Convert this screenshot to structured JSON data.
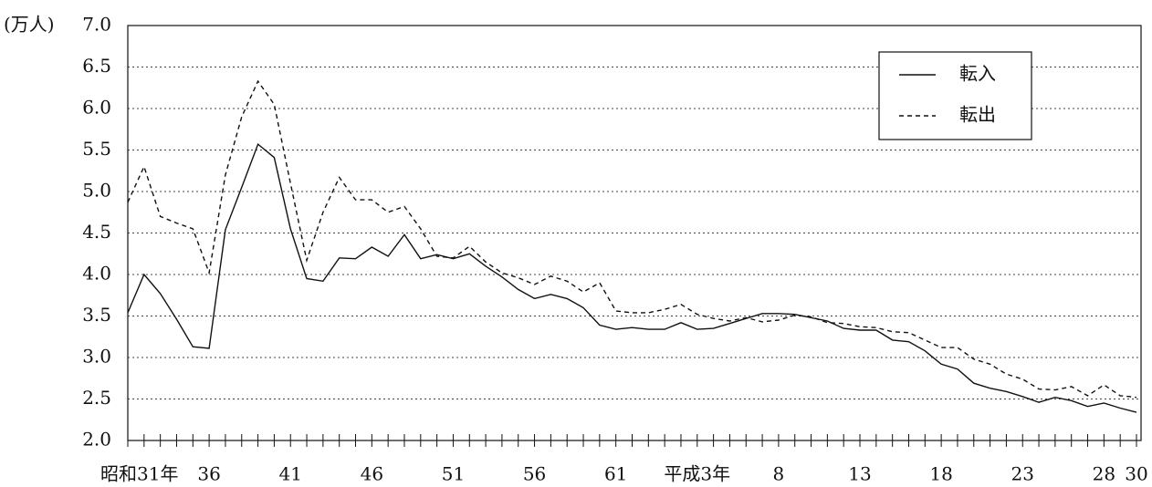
{
  "chart_data": {
    "type": "line",
    "y_unit": "(万人)",
    "categories": [
      "昭和31年",
      null,
      null,
      null,
      null,
      "36",
      null,
      null,
      null,
      null,
      "41",
      null,
      null,
      null,
      null,
      "46",
      null,
      null,
      null,
      null,
      "51",
      null,
      null,
      null,
      null,
      "56",
      null,
      null,
      null,
      null,
      "61",
      null,
      null,
      null,
      null,
      "平成3年",
      null,
      null,
      null,
      null,
      "8",
      null,
      null,
      null,
      null,
      "13",
      null,
      null,
      null,
      null,
      "18",
      null,
      null,
      null,
      null,
      "23",
      null,
      null,
      null,
      null,
      "28",
      null,
      "30"
    ],
    "series": [
      {
        "name": "転入",
        "color": "#111111",
        "line_style": "solid",
        "values": [
          3.54,
          4.0,
          3.77,
          3.46,
          3.13,
          3.11,
          4.54,
          5.05,
          5.57,
          5.41,
          4.55,
          3.95,
          3.92,
          4.2,
          4.19,
          4.33,
          4.22,
          4.48,
          4.19,
          4.24,
          4.19,
          4.25,
          4.1,
          3.97,
          3.82,
          3.71,
          3.76,
          3.71,
          3.6,
          3.39,
          3.34,
          3.36,
          3.34,
          3.34,
          3.42,
          3.34,
          3.35,
          3.41,
          3.47,
          3.53,
          3.53,
          3.52,
          3.48,
          3.44,
          3.35,
          3.33,
          3.33,
          3.21,
          3.19,
          3.08,
          2.92,
          2.86,
          2.69,
          2.63,
          2.59,
          2.53,
          2.46,
          2.52,
          2.48,
          2.41,
          2.45,
          2.39,
          2.34
        ]
      },
      {
        "name": "転出",
        "color": "#111111",
        "line_style": "dashed",
        "values": [
          4.87,
          5.3,
          4.7,
          4.62,
          4.55,
          4.02,
          5.2,
          5.9,
          6.33,
          6.05,
          5.1,
          4.17,
          4.75,
          5.17,
          4.9,
          4.9,
          4.75,
          4.82,
          4.55,
          4.22,
          4.2,
          4.34,
          4.15,
          4.02,
          3.96,
          3.88,
          3.98,
          3.92,
          3.79,
          3.9,
          3.56,
          3.54,
          3.54,
          3.58,
          3.64,
          3.52,
          3.47,
          3.44,
          3.48,
          3.43,
          3.45,
          3.51,
          3.49,
          3.42,
          3.41,
          3.37,
          3.36,
          3.31,
          3.3,
          3.21,
          3.12,
          3.12,
          2.98,
          2.92,
          2.8,
          2.74,
          2.62,
          2.61,
          2.65,
          2.54,
          2.67,
          2.54,
          2.52
        ]
      }
    ],
    "ylim": [
      2.0,
      7.0
    ],
    "yticks": [
      {
        "value": 2,
        "label": "2.0"
      },
      2.5,
      {
        "value": 3,
        "label": "3.0"
      },
      3.5,
      {
        "value": 4,
        "label": "4.0"
      },
      4.5,
      {
        "value": 5,
        "label": "5.0"
      },
      5.5,
      {
        "value": 6,
        "label": "6.0"
      },
      6.5,
      {
        "value": 7,
        "label": "7.0"
      }
    ],
    "grid": true,
    "legend": "upper right"
  }
}
